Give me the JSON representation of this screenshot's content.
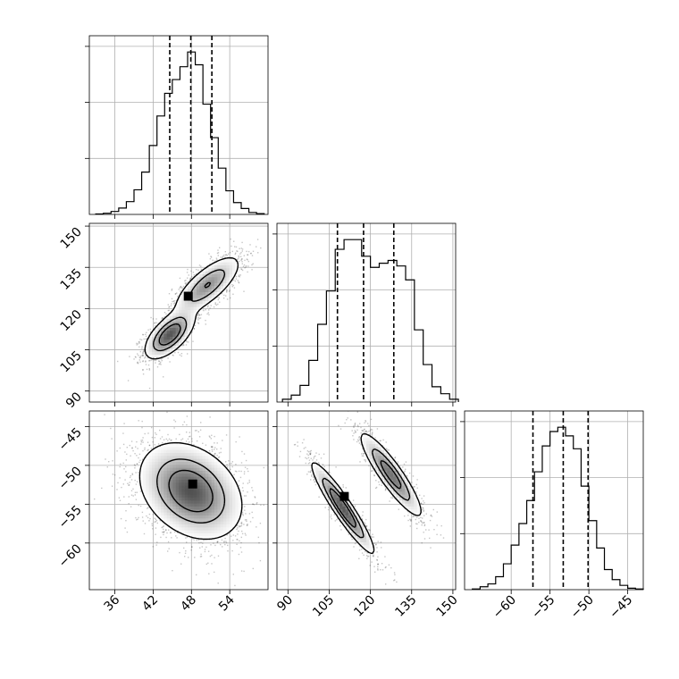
{
  "chart_data": {
    "type": "corner",
    "title": "",
    "parameters": [
      {
        "name": "",
        "range": [
          32,
          60
        ],
        "ticks": [
          36,
          42,
          48,
          54
        ],
        "quantiles": [
          44.6,
          47.9,
          51.2
        ]
      },
      {
        "name": "",
        "range": [
          86,
          151
        ],
        "ticks": [
          90,
          105,
          120,
          135,
          150
        ],
        "quantiles": [
          108.0,
          117.5,
          128.5
        ]
      },
      {
        "name": "",
        "range": [
          -66,
          -43
        ],
        "ticks": [
          -60,
          -55,
          -50,
          -45
        ],
        "quantiles": [
          -57.2,
          -53.3,
          -50.1
        ]
      }
    ],
    "tick_label_text": {
      "p0": [
        "36",
        "42",
        "48",
        "54"
      ],
      "p1": [
        "90",
        "105",
        "120",
        "135",
        "150"
      ],
      "p2": [
        "−60",
        "−55",
        "−50",
        "−45"
      ]
    },
    "marginal_histograms": [
      {
        "param": 0,
        "bin_edges": [
          33,
          34.2,
          35.4,
          36.6,
          37.8,
          39,
          40.2,
          41.4,
          42.6,
          43.8,
          45,
          46.2,
          47.4,
          48.6,
          49.8,
          51,
          52.2,
          53.4,
          54.6,
          55.8,
          57,
          58.2,
          59.4
        ],
        "counts": [
          0.5,
          1.2,
          3,
          6.5,
          13,
          25,
          43,
          70,
          100,
          123,
          137,
          150,
          165,
          152,
          112,
          78,
          47,
          24,
          12,
          6,
          2,
          0.8
        ]
      },
      {
        "param": 1,
        "bin_edges": [
          88,
          91.2,
          94.4,
          97.6,
          100.8,
          104,
          107.2,
          110.4,
          113.6,
          116.8,
          120,
          123.2,
          126.4,
          129.6,
          132.8,
          136,
          139.2,
          142.4,
          145.6,
          148.8,
          152
        ],
        "counts": [
          2,
          5,
          12,
          30,
          56,
          80,
          110,
          117,
          117,
          105,
          97,
          100,
          102,
          98,
          88,
          52,
          27,
          11,
          6,
          2
        ]
      },
      {
        "param": 2,
        "bin_edges": [
          -65,
          -64,
          -63,
          -62,
          -61,
          -60,
          -59,
          -58,
          -57,
          -56,
          -55,
          -54,
          -53,
          -52,
          -51,
          -50,
          -49,
          -48,
          -47,
          -46,
          -45,
          -44,
          -43
        ],
        "counts": [
          0.5,
          2,
          4,
          9,
          18,
          31,
          46,
          62,
          82,
          100,
          110,
          113,
          107,
          98,
          72,
          48,
          29,
          14,
          7,
          3,
          1,
          0.5
        ]
      }
    ],
    "joint_distributions": [
      {
        "x_param": 0,
        "y_param": 1,
        "components": [
          {
            "mean": [
              44.6,
              110.5
            ],
            "cov": [
              [
                3.5,
                4.9
              ],
              [
                4.9,
                18
              ]
            ],
            "weight": 0.5
          },
          {
            "mean": [
              50.5,
              128.5
            ],
            "cov": [
              [
                6.5,
                10
              ],
              [
                10,
                28
              ]
            ],
            "weight": 0.5
          }
        ],
        "peak": [
          47.5,
          124.5
        ]
      },
      {
        "x_param": 0,
        "y_param": 2,
        "components": [
          {
            "mean": [
              47.9,
              -53.3
            ],
            "cov": [
              [
                15,
                -3.5
              ],
              [
                -3.5,
                9
              ]
            ],
            "weight": 1.0
          }
        ],
        "peak": [
          48.2,
          -52.4
        ]
      },
      {
        "x_param": 1,
        "y_param": 2,
        "components": [
          {
            "mean": [
              110,
              -55.5
            ],
            "cov": [
              [
                30,
                -14.5
              ],
              [
                -14.5,
                8
              ]
            ],
            "weight": 0.5
          },
          {
            "mean": [
              127.5,
              -51.2
            ],
            "cov": [
              [
                30,
                -13
              ],
              [
                -13,
                7
              ]
            ],
            "weight": 0.5
          }
        ],
        "peak": [
          110.5,
          -54
        ]
      }
    ],
    "grid": true,
    "contour_levels": [
      0.118,
      0.393,
      0.675
    ]
  }
}
